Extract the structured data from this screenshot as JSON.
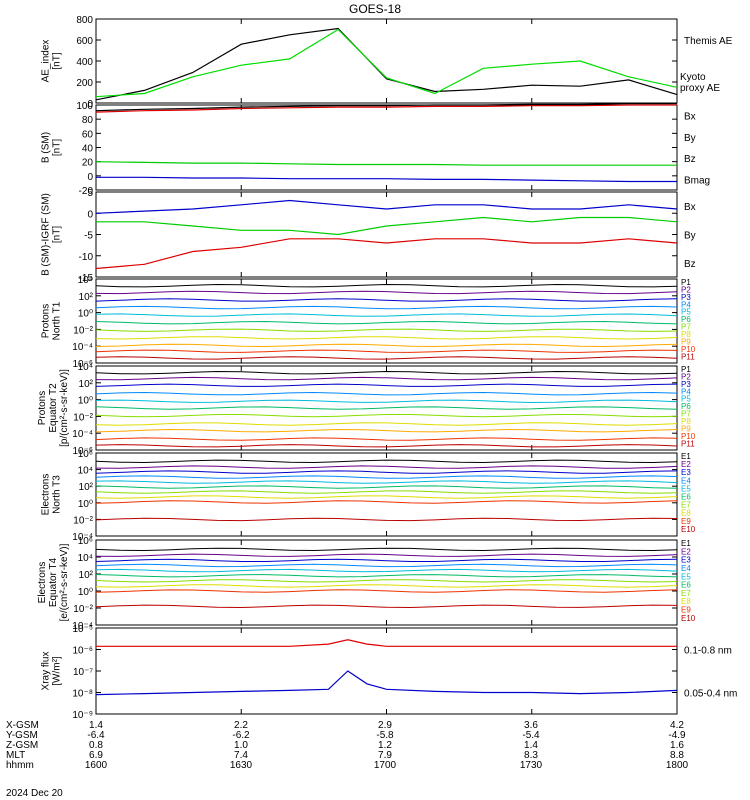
{
  "figure": {
    "title": "GOES-18",
    "date": "2024 Dec 20",
    "xaxis": {
      "rows": [
        {
          "label": "X-GSM",
          "values": [
            "1.4",
            "2.2",
            "2.9",
            "3.6",
            "4.2"
          ]
        },
        {
          "label": "Y-GSM",
          "values": [
            "-6.4",
            "-6.2",
            "-5.8",
            "-5.4",
            "-4.9"
          ]
        },
        {
          "label": "Z-GSM",
          "values": [
            "0.8",
            "1.0",
            "1.2",
            "1.4",
            "1.6"
          ]
        },
        {
          "label": "MLT",
          "values": [
            "6.9",
            "7.4",
            "7.9",
            "8.3",
            "8.8"
          ]
        },
        {
          "label": "hhmm",
          "values": [
            "1600",
            "1630",
            "1700",
            "1730",
            "1800"
          ]
        }
      ]
    }
  },
  "chart_data": [
    {
      "type": "line",
      "ylabel": [
        "AE_index",
        "[nT]"
      ],
      "ylim": [
        0,
        800
      ],
      "yticks": [
        "0",
        "200",
        "400",
        "600",
        "800"
      ],
      "x_hhmm": [
        "1600",
        "1610",
        "1620",
        "1630",
        "1640",
        "1650",
        "1700",
        "1710",
        "1720",
        "1730",
        "1740",
        "1750",
        "1800"
      ],
      "series": [
        {
          "name": "Themis AE",
          "color": "#000000",
          "values": [
            30,
            120,
            290,
            560,
            650,
            710,
            230,
            110,
            130,
            170,
            160,
            220,
            80
          ]
        },
        {
          "name": "Kyoto proxy AE",
          "labelLines": [
            "Kyoto",
            "proxy AE"
          ],
          "color": "#00dd00",
          "values": [
            60,
            90,
            250,
            360,
            420,
            700,
            240,
            90,
            330,
            370,
            400,
            250,
            150
          ]
        }
      ]
    },
    {
      "type": "line",
      "ylabel": [
        "B (SM)",
        "[nT]"
      ],
      "ylim": [
        -20,
        100
      ],
      "yticks": [
        "-20",
        "0",
        "20",
        "40",
        "60",
        "80",
        "100"
      ],
      "series": [
        {
          "name": "Bx",
          "color": "#0000cc",
          "values": [
            -2,
            -2,
            -3,
            -3,
            -4,
            -4,
            -4,
            -5,
            -5,
            -6,
            -7,
            -8,
            -8
          ]
        },
        {
          "name": "By",
          "color": "#00cc00",
          "values": [
            20,
            19,
            18,
            18,
            17,
            16,
            16,
            16,
            15,
            15,
            15,
            15,
            15
          ]
        },
        {
          "name": "Bz",
          "color": "#dd0000",
          "values": [
            90,
            92,
            93,
            95,
            96,
            97,
            97,
            98,
            98,
            99,
            99,
            100,
            100
          ]
        },
        {
          "name": "Bmag",
          "color": "#000000",
          "values": [
            92,
            94,
            95,
            97,
            98,
            99,
            99,
            100,
            100,
            101,
            101,
            102,
            102
          ]
        }
      ]
    },
    {
      "type": "line",
      "ylabel": [
        "B (SM)-IGRF (SM)",
        "[nT]"
      ],
      "ylim": [
        -15,
        5
      ],
      "yticks": [
        "-15",
        "-10",
        "-5",
        "0",
        "5"
      ],
      "series": [
        {
          "name": "Bx",
          "color": "#0000cc",
          "values": [
            0,
            0.5,
            1,
            2,
            3,
            2,
            1,
            2,
            2,
            1,
            1,
            2,
            1
          ]
        },
        {
          "name": "By",
          "color": "#00cc00",
          "values": [
            -2,
            -2,
            -3,
            -4,
            -4,
            -5,
            -3,
            -2,
            -1,
            -2,
            -1,
            -1,
            -2
          ]
        },
        {
          "name": "Bz",
          "color": "#dd0000",
          "values": [
            -13,
            -12,
            -9,
            -8,
            -6,
            -6,
            -7,
            -6,
            -6,
            -7,
            -7,
            -6,
            -7
          ]
        }
      ]
    },
    {
      "type": "line",
      "ylabel": [
        "Protons",
        "North T1"
      ],
      "log": true,
      "ylim_exp": [
        -6,
        4
      ],
      "yticks": [
        "10⁴",
        "10²",
        "10⁰",
        "10⁻²",
        "10⁻⁴",
        "10⁻⁶"
      ],
      "channels": [
        {
          "name": "P1",
          "color": "#000000",
          "log": 3.2
        },
        {
          "name": "P2",
          "color": "#660088",
          "log": 2.4
        },
        {
          "name": "P3",
          "color": "#0000cc",
          "log": 1.5
        },
        {
          "name": "P4",
          "color": "#0088ff",
          "log": 0.6
        },
        {
          "name": "P5",
          "color": "#00bbdd",
          "log": -0.3
        },
        {
          "name": "P6",
          "color": "#00bb66",
          "log": -1.2
        },
        {
          "name": "P7",
          "color": "#88dd00",
          "log": -2.1
        },
        {
          "name": "P8",
          "color": "#dddd00",
          "log": -3.0
        },
        {
          "name": "P9",
          "color": "#ffaa00",
          "log": -3.9
        },
        {
          "name": "P10",
          "color": "#ee3300",
          "log": -4.6
        },
        {
          "name": "P11",
          "color": "#bb0000",
          "log": -5.4
        }
      ]
    },
    {
      "type": "line",
      "ylabel": [
        "Protons",
        "Equator T2",
        "[p/(cm²-s-sr-keV)]"
      ],
      "log": true,
      "ylim_exp": [
        -6,
        4
      ],
      "yticks": [
        "10⁴",
        "10²",
        "10⁰",
        "10⁻²",
        "10⁻⁴",
        "10⁻⁶"
      ],
      "channels": [
        {
          "name": "P1",
          "color": "#000000",
          "log": 3.2
        },
        {
          "name": "P2",
          "color": "#660088",
          "log": 2.5
        },
        {
          "name": "P3",
          "color": "#0000cc",
          "log": 1.7
        },
        {
          "name": "P4",
          "color": "#0088ff",
          "log": 0.7
        },
        {
          "name": "P5",
          "color": "#00bbdd",
          "log": -0.2
        },
        {
          "name": "P6",
          "color": "#00bb66",
          "log": -1.0
        },
        {
          "name": "P7",
          "color": "#88dd00",
          "log": -1.9
        },
        {
          "name": "P8",
          "color": "#dddd00",
          "log": -2.9
        },
        {
          "name": "P9",
          "color": "#ffaa00",
          "log": -3.7
        },
        {
          "name": "P10",
          "color": "#ee3300",
          "log": -4.7
        },
        {
          "name": "P11",
          "color": "#bb0000",
          "log": -5.5
        }
      ]
    },
    {
      "type": "line",
      "ylabel": [
        "Electrons",
        "North T3"
      ],
      "log": true,
      "ylim_exp": [
        -4,
        6
      ],
      "yticks": [
        "10⁶",
        "10⁴",
        "10²",
        "10⁰",
        "10⁻²",
        "10⁻⁴"
      ],
      "channels": [
        {
          "name": "E1",
          "color": "#000000",
          "log": 5.0
        },
        {
          "name": "E2",
          "color": "#660088",
          "log": 4.3
        },
        {
          "name": "E3",
          "color": "#0000cc",
          "log": 3.7
        },
        {
          "name": "E4",
          "color": "#0088ff",
          "log": 3.1
        },
        {
          "name": "E5",
          "color": "#00bbdd",
          "log": 2.5
        },
        {
          "name": "E6",
          "color": "#00bb66",
          "log": 1.9
        },
        {
          "name": "E7",
          "color": "#88dd00",
          "log": 1.3
        },
        {
          "name": "E8",
          "color": "#dddd00",
          "log": 0.7
        },
        {
          "name": "E9",
          "color": "#ee3300",
          "log": 0.1
        },
        {
          "name": "E10",
          "color": "#bb0000",
          "log": -2.0
        }
      ]
    },
    {
      "type": "line",
      "ylabel": [
        "Electrons",
        "Equator T4",
        "[e/(cm²-s-sr-keV)]"
      ],
      "log": true,
      "ylim_exp": [
        -4,
        6
      ],
      "yticks": [
        "10⁶",
        "10⁴",
        "10²",
        "10⁰",
        "10⁻²",
        "10⁻⁴"
      ],
      "channels": [
        {
          "name": "E1",
          "color": "#000000",
          "log": 4.9
        },
        {
          "name": "E2",
          "color": "#660088",
          "log": 4.2
        },
        {
          "name": "E3",
          "color": "#0000cc",
          "log": 3.6
        },
        {
          "name": "E4",
          "color": "#0088ff",
          "log": 3.0
        },
        {
          "name": "E5",
          "color": "#00bbdd",
          "log": 2.4
        },
        {
          "name": "E6",
          "color": "#00bb66",
          "log": 1.8
        },
        {
          "name": "E7",
          "color": "#88dd00",
          "log": 1.2
        },
        {
          "name": "E8",
          "color": "#dddd00",
          "log": 0.6
        },
        {
          "name": "E9",
          "color": "#ee3300",
          "log": 0.0
        },
        {
          "name": "E10",
          "color": "#bb0000",
          "log": -1.8
        }
      ]
    },
    {
      "type": "line",
      "ylabel": [
        "Xray flux",
        "[W/m²]"
      ],
      "log": true,
      "ylim_exp": [
        -9,
        -5
      ],
      "yticks": [
        "10⁻⁵",
        "10⁻⁶",
        "10⁻⁷",
        "10⁻⁸",
        "10⁻⁹"
      ],
      "x_hhmm": [
        "1600",
        "1610",
        "1620",
        "1630",
        "1640",
        "1648",
        "1652",
        "1656",
        "1700",
        "1710",
        "1720",
        "1730",
        "1740",
        "1750",
        "1800"
      ],
      "series": [
        {
          "name": "0.1-0.8 nm",
          "color": "#dd0000",
          "values": [
            -5.85,
            -5.85,
            -5.85,
            -5.85,
            -5.85,
            -5.75,
            -5.55,
            -5.75,
            -5.85,
            -5.85,
            -5.85,
            -5.85,
            -5.85,
            -5.85,
            -5.85
          ]
        },
        {
          "name": "0.05-0.4 nm",
          "color": "#0000cc",
          "values": [
            -8.1,
            -8.05,
            -8.0,
            -7.95,
            -7.9,
            -7.85,
            -7.0,
            -7.6,
            -7.85,
            -7.95,
            -8.0,
            -8.0,
            -8.05,
            -8.0,
            -7.9
          ]
        }
      ]
    }
  ]
}
